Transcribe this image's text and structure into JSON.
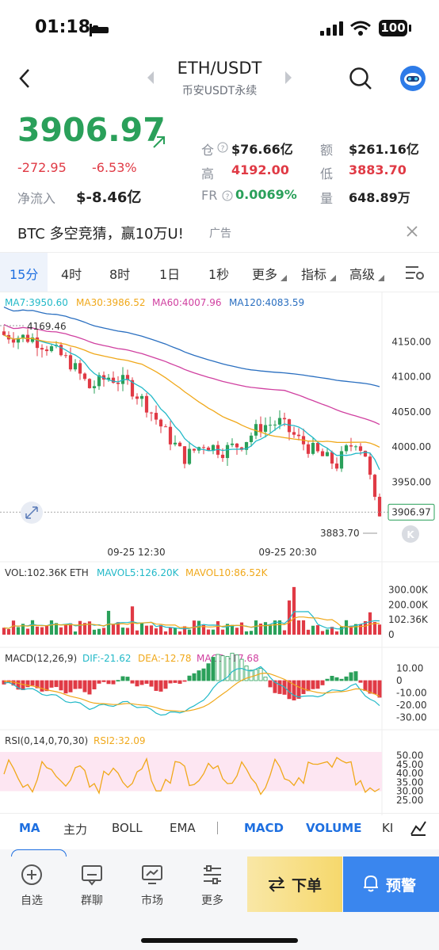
{
  "status": {
    "time": "01:18",
    "battery": "100"
  },
  "header": {
    "pair": "ETH/USDT",
    "subtitle": "币安USDT永续"
  },
  "price": {
    "last": "3906.97",
    "change": "-272.95",
    "change_pct": "-6.53%",
    "net_inflow_label": "净流入",
    "net_inflow": "$-8.46亿",
    "oi_label": "仓",
    "oi": "$76.66亿",
    "amount_label": "额",
    "amount": "$261.16亿",
    "high_label": "高",
    "high": "4192.00",
    "low_label": "低",
    "low": "3883.70",
    "fr_label": "FR",
    "fr": "0.0069%",
    "vol_label": "量",
    "vol": "648.89万"
  },
  "ad": {
    "text": "BTC 多空竞猜，赢10万U!",
    "tag": "广告"
  },
  "intervals": {
    "items": [
      "15分",
      "4时",
      "8时",
      "1日",
      "1秒",
      "更多",
      "指标",
      "高级"
    ],
    "active": 0
  },
  "ma_legend": {
    "ma7": "MA7:3950.60",
    "ma30": "MA30:3986.52",
    "ma60": "MA60:4007.96",
    "ma120": "MA120:4083.59"
  },
  "colors": {
    "up": "#2aa05a",
    "down": "#e03a45",
    "ma7": "#22b9c8",
    "ma30": "#f0a81a",
    "ma60": "#d040a0",
    "ma120": "#2a6fc0",
    "accent": "#1e6fe0"
  },
  "main_chart": {
    "y_ticks": [
      "4150.00",
      "4100.00",
      "4050.00",
      "4000.00",
      "3950.00"
    ],
    "max_label": "4169.46",
    "min_label": "3883.70",
    "last_label": "3906.97",
    "time_labels": [
      "09-25 12:30",
      "09-25 20:30"
    ]
  },
  "volume": {
    "legend": "VOL:102.36K ETH",
    "mavol5": "MAVOL5:126.20K",
    "mavol10": "MAVOL10:86.52K",
    "ticks": [
      "300.00K",
      "200.00K",
      "102.36K",
      "0"
    ]
  },
  "macd": {
    "legend": "MACD(12,26,9)",
    "dif": "DIF:-21.62",
    "dea": "DEA:-12.78",
    "macd": "MACD:-17.68",
    "ticks": [
      "10.00",
      "0",
      "-10.00",
      "-20.00",
      "-30.00"
    ]
  },
  "rsi": {
    "legend": "RSI(0,14,0,70,30)",
    "rsi2": "RSI2:32.09",
    "ticks": [
      "50.00",
      "45.00",
      "40.00",
      "35.00",
      "30.00",
      "25.00"
    ]
  },
  "indicator_tabs": [
    "MA",
    "主力",
    "BOLL",
    "EMA",
    "MACD",
    "VOLUME",
    "KI"
  ],
  "bottom_nav": {
    "items": [
      "自选",
      "群聊",
      "市场",
      "更多"
    ],
    "order_label": "下单",
    "alert_label": "预警"
  }
}
